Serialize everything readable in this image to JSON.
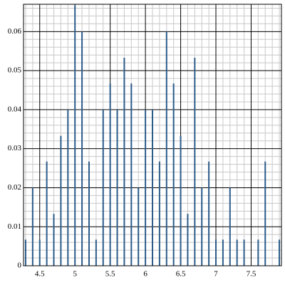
{
  "chart_data": {
    "type": "stem",
    "x": [
      4.3,
      4.4,
      4.5,
      4.6,
      4.7,
      4.8,
      4.9,
      5.0,
      5.1,
      5.2,
      5.3,
      5.4,
      5.5,
      5.6,
      5.7,
      5.8,
      5.9,
      6.0,
      6.1,
      6.2,
      6.3,
      6.4,
      6.5,
      6.6,
      6.7,
      6.8,
      6.9,
      7.0,
      7.1,
      7.2,
      7.3,
      7.4,
      7.6,
      7.7,
      7.9
    ],
    "values": [
      0.0067,
      0.02,
      0.0067,
      0.0267,
      0.0133,
      0.0333,
      0.04,
      0.0667,
      0.06,
      0.0267,
      0.0067,
      0.04,
      0.0467,
      0.04,
      0.0533,
      0.0467,
      0.02,
      0.04,
      0.04,
      0.0267,
      0.06,
      0.0467,
      0.0333,
      0.0133,
      0.0533,
      0.02,
      0.0267,
      0.0067,
      0.0067,
      0.02,
      0.0067,
      0.0067,
      0.0067,
      0.0267,
      0.0067
    ],
    "color": "#2b5c8a",
    "xlim": [
      4.27,
      7.93
    ],
    "ylim": [
      0,
      0.067
    ],
    "xticks": [
      4.5,
      5,
      5.5,
      6,
      6.5,
      7,
      7.5
    ],
    "yticks": [
      0,
      0.01,
      0.02,
      0.03,
      0.04,
      0.05,
      0.06
    ],
    "xminorticks": [
      4.3,
      4.4,
      4.6,
      4.7,
      4.8,
      4.9,
      5.1,
      5.2,
      5.3,
      5.4,
      5.6,
      5.7,
      5.8,
      5.9,
      6.1,
      6.2,
      6.3,
      6.4,
      6.6,
      6.7,
      6.8,
      6.9,
      7.1,
      7.2,
      7.3,
      7.4,
      7.6,
      7.7,
      7.8,
      7.9
    ],
    "yminorticks": [
      0.002,
      0.004,
      0.006,
      0.008,
      0.012,
      0.014,
      0.016,
      0.018,
      0.022,
      0.024,
      0.026,
      0.028,
      0.032,
      0.034,
      0.036,
      0.038,
      0.042,
      0.044,
      0.046,
      0.048,
      0.052,
      0.054,
      0.056,
      0.058,
      0.062,
      0.064,
      0.066
    ],
    "grid": true
  }
}
